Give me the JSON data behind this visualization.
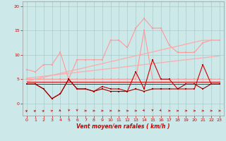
{
  "x": [
    0,
    1,
    2,
    3,
    4,
    5,
    6,
    7,
    8,
    9,
    10,
    11,
    12,
    13,
    14,
    15,
    16,
    17,
    18,
    19,
    20,
    21,
    22,
    23
  ],
  "gust_upper": [
    7,
    6.5,
    8,
    8,
    10.5,
    5,
    9,
    9,
    9,
    9,
    13,
    13,
    11.5,
    15.5,
    17.5,
    15.5,
    15.5,
    12,
    10.5,
    10.5,
    10.5,
    12.5,
    13,
    13
  ],
  "gust_lower": [
    5,
    5,
    5,
    5,
    5,
    5,
    5,
    5,
    5,
    5,
    5,
    5,
    5,
    5,
    15,
    5,
    5,
    5,
    5,
    5,
    5,
    5,
    5,
    5
  ],
  "trend_upper": [
    4.5,
    5.0,
    5.4,
    5.8,
    6.2,
    6.6,
    7.0,
    7.4,
    7.8,
    8.2,
    8.6,
    9.0,
    9.4,
    9.8,
    10.2,
    10.6,
    11.0,
    11.4,
    11.8,
    12.2,
    12.6,
    13.0,
    13.0,
    13.0
  ],
  "trend_lower": [
    5.2,
    5.4,
    5.6,
    5.8,
    6.0,
    6.2,
    6.4,
    6.6,
    6.8,
    7.0,
    7.2,
    7.4,
    7.6,
    7.8,
    8.0,
    8.2,
    8.4,
    8.6,
    8.8,
    9.0,
    9.2,
    9.4,
    9.6,
    9.8
  ],
  "mean_flat_hi": [
    4.5,
    4.5,
    4.5,
    4.5,
    4.5,
    4.5,
    4.5,
    4.5,
    4.5,
    4.5,
    4.5,
    4.5,
    4.5,
    4.5,
    4.5,
    4.5,
    4.5,
    4.5,
    4.5,
    4.5,
    4.5,
    4.5,
    4.5,
    4.5
  ],
  "mean_flat_lo": [
    4,
    4,
    4,
    4,
    4,
    4,
    4,
    4,
    4,
    4,
    4,
    4,
    4,
    4,
    4,
    4,
    4,
    4,
    4,
    4,
    4,
    4,
    4,
    4
  ],
  "dark_spiky": [
    4,
    4,
    3,
    1,
    2,
    5,
    3,
    3,
    2.5,
    3.5,
    3,
    3,
    2.5,
    6.5,
    3,
    9,
    5,
    5,
    3,
    3,
    3,
    8,
    4,
    4
  ],
  "dark_lower": [
    4,
    4,
    3,
    1,
    2,
    5,
    3,
    3,
    2.5,
    3,
    2.5,
    2.5,
    2.5,
    3,
    2.5,
    3,
    3,
    3,
    3,
    4,
    4,
    3,
    4,
    4
  ],
  "background_color": "#cce8e8",
  "grid_color": "#aacccc",
  "light_pink": "#ff9999",
  "light_pink2": "#ffaaaa",
  "dark_red": "#cc0000",
  "darker_red": "#990000",
  "xlabel": "Vent moyen/en rafales ( km/h )",
  "ylim": [
    -2.5,
    21
  ],
  "xlim": [
    -0.5,
    23.5
  ],
  "yticks": [
    0,
    5,
    10,
    15,
    20
  ],
  "xticks": [
    0,
    1,
    2,
    3,
    4,
    5,
    6,
    7,
    8,
    9,
    10,
    11,
    12,
    13,
    14,
    15,
    16,
    17,
    18,
    19,
    20,
    21,
    22,
    23
  ]
}
